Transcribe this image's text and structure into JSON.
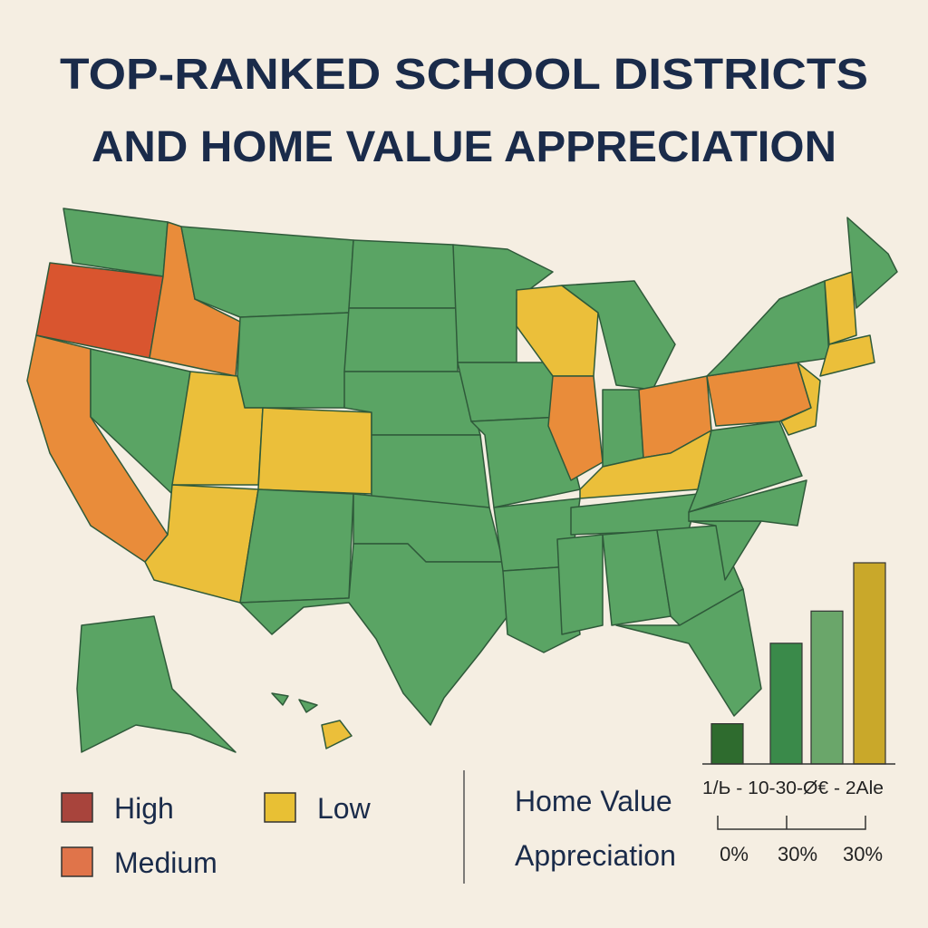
{
  "header": {
    "title_lines": [
      "TOP-RANKED SCHOOL DISTRICTS",
      "AND HOME VALUE APPRECIATION"
    ]
  },
  "legend": [
    {
      "label": "High",
      "color": "#d9552f",
      "swatch": "#a8443c"
    },
    {
      "label": "Medium",
      "color": "#e98c3a",
      "swatch": "#e0744a"
    },
    {
      "label": "Low",
      "color": "#ebbf3a",
      "swatch": "#e8c034"
    }
  ],
  "base_color": "#5aa464",
  "chart_data": {
    "type": "bar",
    "title": "Home Value Appreciation",
    "values": [
      5,
      15,
      19,
      25
    ],
    "colors": [
      "#2e6b2e",
      "#3a8a4a",
      "#6aa66a",
      "#c9a82a"
    ],
    "ylim": [
      0,
      25
    ],
    "category_caption": "1/Ь - 10-30-Ø€ - 2Ale",
    "axis_labels": [
      "0%",
      "30%",
      "30%"
    ]
  }
}
